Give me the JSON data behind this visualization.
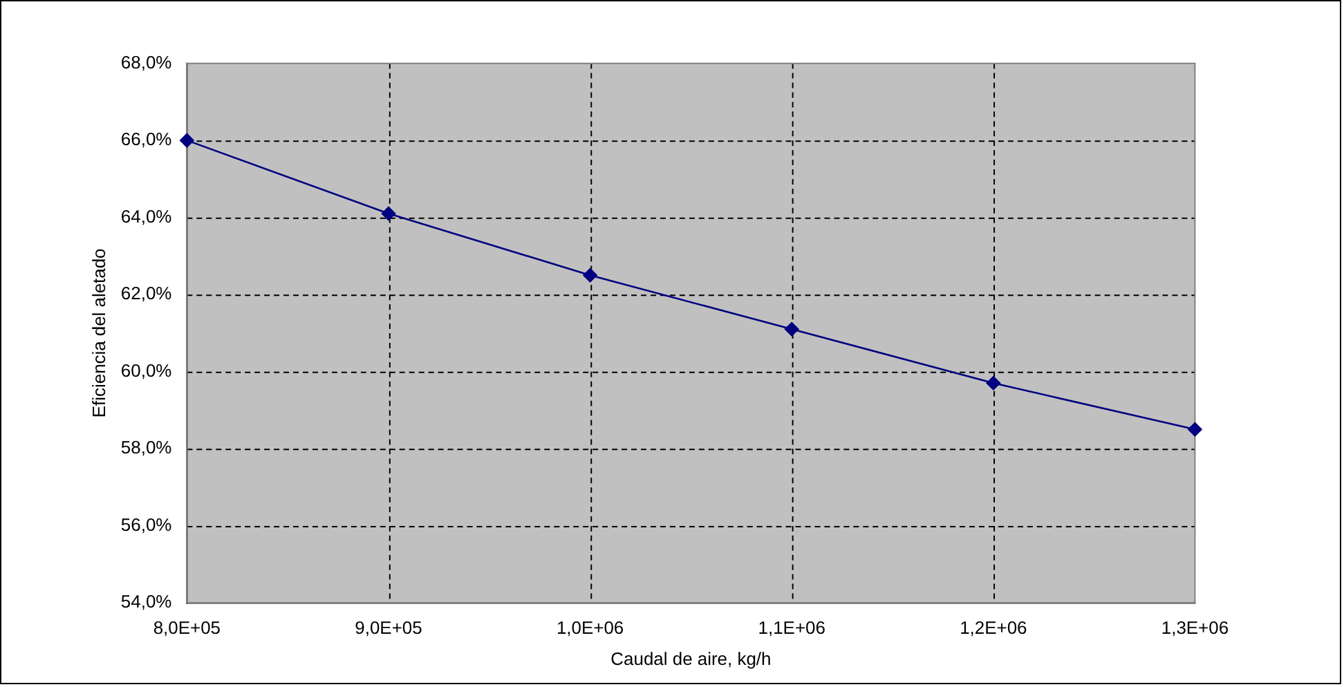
{
  "chart_data": {
    "type": "line",
    "xlabel": "Caudal de aire, kg/h",
    "ylabel": "Eficiencia del aletado",
    "categories": [
      "8,0E+05",
      "9,0E+05",
      "1,0E+06",
      "1,1E+06",
      "1,2E+06",
      "1,3E+06"
    ],
    "series": [
      {
        "color": "#000080",
        "values": [
          66.0,
          64.1,
          62.5,
          61.1,
          59.7,
          58.5
        ]
      }
    ],
    "ylim": [
      54,
      68
    ],
    "yticks": [
      {
        "value": 54,
        "label": "54,0%"
      },
      {
        "value": 56,
        "label": "56,0%"
      },
      {
        "value": 58,
        "label": "58,0%"
      },
      {
        "value": 60,
        "label": "60,0%"
      },
      {
        "value": 62,
        "label": "62,0%"
      },
      {
        "value": 64,
        "label": "64,0%"
      },
      {
        "value": 66,
        "label": "66,0%"
      },
      {
        "value": 68,
        "label": "68,0%"
      }
    ],
    "grid": true,
    "legend": false,
    "marker": "diamond",
    "line_style": "solid"
  }
}
